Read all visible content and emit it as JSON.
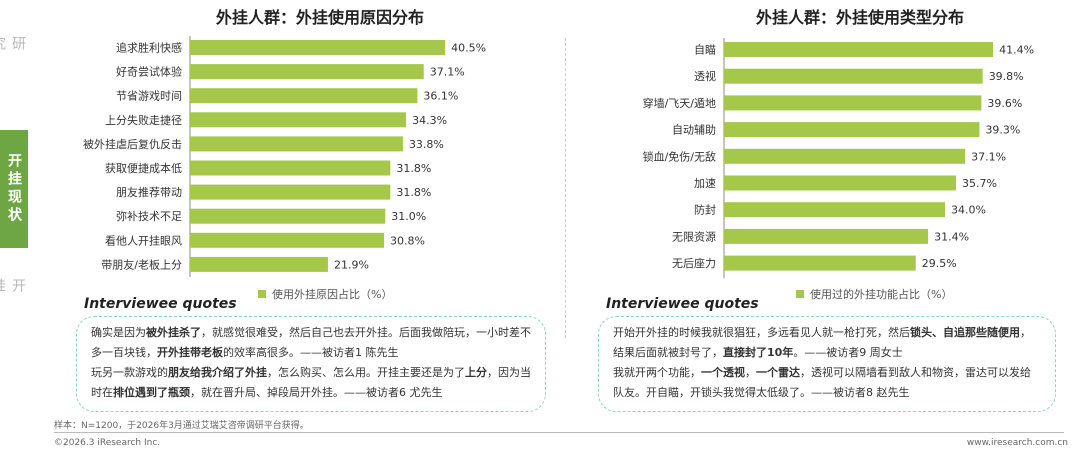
{
  "sidebar": [
    {
      "label": "研究设计",
      "active": false
    },
    {
      "label": "开挂现状",
      "active": true
    },
    {
      "label": "开挂态度",
      "active": false
    }
  ],
  "chart_data": [
    {
      "type": "bar",
      "orientation": "horizontal",
      "title": "外挂人群：外挂使用原因分布",
      "categories": [
        "追求胜利快感",
        "好奇尝试体验",
        "节省游戏时间",
        "上分失败走捷径",
        "被外挂虐后复仇反击",
        "获取便捷成本低",
        "朋友推荐带动",
        "弥补技术不足",
        "看他人开挂眼风",
        "带朋友/老板上分"
      ],
      "values": [
        40.5,
        37.1,
        36.1,
        34.3,
        33.8,
        31.8,
        31.8,
        31.0,
        30.8,
        21.9
      ],
      "value_labels": [
        "40.5%",
        "37.1%",
        "36.1%",
        "34.3%",
        "33.8%",
        "31.8%",
        "31.8%",
        "31.0%",
        "30.8%",
        "21.9%"
      ],
      "legend": "使用外挂原因占比（%）",
      "color": "#a5c84a",
      "xlim": [
        0,
        45
      ]
    },
    {
      "type": "bar",
      "orientation": "horizontal",
      "title": "外挂人群：外挂使用类型分布",
      "categories": [
        "自瞄",
        "透视",
        "穿墙/飞天/遁地",
        "自动辅助",
        "锁血/免伤/无敌",
        "加速",
        "防封",
        "无限资源",
        "无后座力"
      ],
      "values": [
        41.4,
        39.8,
        39.6,
        39.3,
        37.1,
        35.7,
        34.0,
        31.4,
        29.5
      ],
      "value_labels": [
        "41.4%",
        "39.8%",
        "39.6%",
        "39.3%",
        "37.1%",
        "35.7%",
        "34.0%",
        "31.4%",
        "29.5%"
      ],
      "legend": "使用过的外挂功能占比（%）",
      "color": "#a5c84a",
      "xlim": [
        0,
        45
      ]
    }
  ],
  "quotes": {
    "heading": "Interviewee quotes",
    "left": [
      [
        {
          "t": "确实是因为",
          "b": false
        },
        {
          "t": "被外挂杀了",
          "b": true
        },
        {
          "t": "，就感觉很难受，然后自己也去开外挂。后面我做陪玩，一小时差不多一百块钱，",
          "b": false
        },
        {
          "t": "开外挂带老板",
          "b": true
        },
        {
          "t": "的效率高很多。——被访者1 陈先生",
          "b": false
        }
      ],
      [
        {
          "t": "玩另一款游戏的",
          "b": false
        },
        {
          "t": "朋友给我介绍了外挂",
          "b": true
        },
        {
          "t": "，怎么购买、怎么用。开挂主要还是为了",
          "b": false
        },
        {
          "t": "上分",
          "b": true
        },
        {
          "t": "，因为当时在",
          "b": false
        },
        {
          "t": "排位遇到了瓶颈",
          "b": true
        },
        {
          "t": "，就在晋升局、掉段局开外挂。——被访者6 尤先生",
          "b": false
        }
      ]
    ],
    "right": [
      [
        {
          "t": "开始开外挂的时候我就很猖狂，多远看见人就一枪打死，然后",
          "b": false
        },
        {
          "t": "锁头、自追那些随便用",
          "b": true
        },
        {
          "t": "，结果后面就被封号了，",
          "b": false
        },
        {
          "t": "直接封了10年",
          "b": true
        },
        {
          "t": "。——被访者9 周女士",
          "b": false
        }
      ],
      [
        {
          "t": "我就开两个功能，",
          "b": false
        },
        {
          "t": "一个透视",
          "b": true
        },
        {
          "t": "，",
          "b": false
        },
        {
          "t": "一个雷达",
          "b": true
        },
        {
          "t": "，透视可以隔墙看到敌人和物资，雷达可以发给队友。开自瞄，开锁头我觉得太低级了。——被访者8 赵先生",
          "b": false
        }
      ]
    ]
  },
  "footer": {
    "note": "样本：N=1200，于2026年3月通过艾瑞艾咨帝调研平台获得。",
    "copyright": "©2026.3 iResearch Inc.",
    "site": "www.iresearch.com.cn"
  }
}
